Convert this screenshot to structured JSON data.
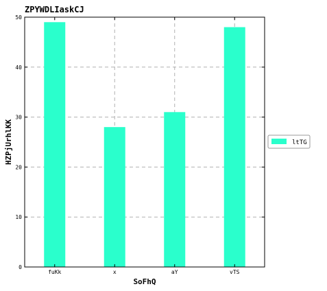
{
  "chart_data": {
    "type": "bar",
    "title": "ZPYWDLIaskCJ",
    "xlabel": "SoFhQ",
    "ylabel": "HZPjUrhlKK",
    "categories": [
      "fuKk",
      "x",
      "aY",
      "vTS"
    ],
    "series": [
      {
        "name": "ltTG",
        "values": [
          49,
          28,
          31,
          48
        ],
        "color": "#2affcc"
      }
    ],
    "ylim": [
      0,
      50
    ],
    "yticks": [
      0,
      10,
      20,
      30,
      40,
      50
    ],
    "grid": true,
    "legend_position": "right"
  }
}
